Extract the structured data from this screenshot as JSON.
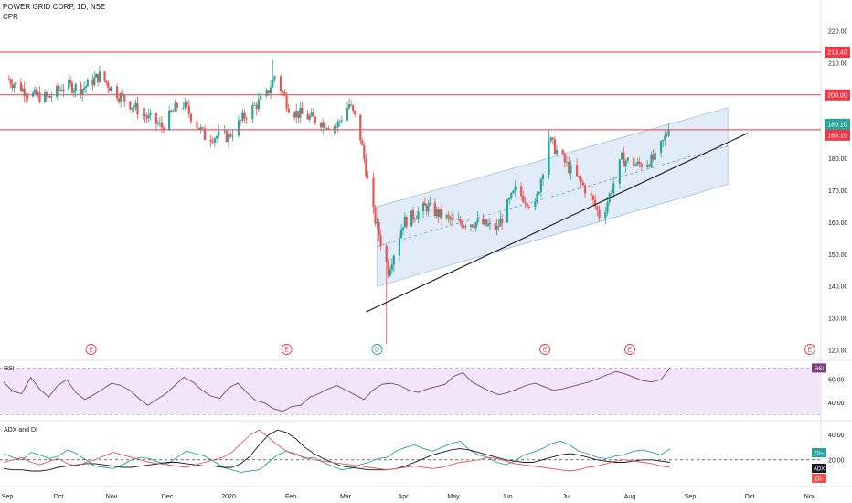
{
  "header": {
    "title": "POWER GRID CORP, 1D, NSE",
    "indicator": "CPR"
  },
  "colors": {
    "up": "#26a69a",
    "down": "#ef5350",
    "hline": "#f23645",
    "channel_fill": "#c9ddf2",
    "channel_edge": "#9cc3e6",
    "trend": "#131722",
    "rsi_line": "#7e3d7e",
    "rsi_band": "#f3e6fb",
    "adx": "#131722",
    "di_plus": "#26a69a",
    "di_minus": "#ef5350",
    "event_stroke": "#f23645",
    "event_stroke_d": "#2ba39c"
  },
  "chart_data": [
    {
      "type": "candlestick",
      "title": "POWER GRID CORP, 1D, NSE",
      "x": [
        "Sep",
        "Oct",
        "Nov",
        "Dec",
        "2020",
        "Feb",
        "Mar",
        "Apr",
        "May",
        "Jun",
        "Jul",
        "Aug",
        "Sep",
        "Oct",
        "Nov"
      ],
      "ylim": [
        118,
        224
      ],
      "yticks": [
        120,
        130,
        140,
        150,
        160,
        170,
        180,
        190,
        200,
        210,
        220
      ],
      "horizontal_lines": [
        {
          "value": 213.4,
          "label": "213.40"
        },
        {
          "value": 200.0,
          "label": "200.00"
        },
        {
          "value": 189.1,
          "label": "189.10"
        }
      ],
      "price_labels": [
        {
          "value": 189.1,
          "label": "189.10",
          "kind": "close"
        },
        {
          "value": 189.1,
          "label": "189.10",
          "kind": "line"
        }
      ],
      "anchors": [
        {
          "date": "2019-09-01",
          "price": 205
        },
        {
          "date": "2019-09-15",
          "price": 200
        },
        {
          "date": "2019-09-25",
          "price": 199
        },
        {
          "date": "2019-10-05",
          "price": 203
        },
        {
          "date": "2019-10-15",
          "price": 202
        },
        {
          "date": "2019-10-25",
          "price": 206
        },
        {
          "date": "2019-11-05",
          "price": 200
        },
        {
          "date": "2019-11-20",
          "price": 193
        },
        {
          "date": "2019-11-28",
          "price": 190
        },
        {
          "date": "2019-12-08",
          "price": 198
        },
        {
          "date": "2019-12-20",
          "price": 187
        },
        {
          "date": "2020-01-01",
          "price": 187
        },
        {
          "date": "2020-01-10",
          "price": 194
        },
        {
          "date": "2020-01-20",
          "price": 200
        },
        {
          "date": "2020-01-24",
          "price": 206
        },
        {
          "date": "2020-02-01",
          "price": 195
        },
        {
          "date": "2020-02-15",
          "price": 192
        },
        {
          "date": "2020-02-25",
          "price": 190
        },
        {
          "date": "2020-03-03",
          "price": 197
        },
        {
          "date": "2020-03-08",
          "price": 190
        },
        {
          "date": "2020-03-16",
          "price": 163
        },
        {
          "date": "2020-03-24",
          "price": 145
        },
        {
          "date": "2020-04-01",
          "price": 160
        },
        {
          "date": "2020-04-15",
          "price": 165
        },
        {
          "date": "2020-05-01",
          "price": 160
        },
        {
          "date": "2020-05-15",
          "price": 160
        },
        {
          "date": "2020-05-26",
          "price": 158
        },
        {
          "date": "2020-06-05",
          "price": 170
        },
        {
          "date": "2020-06-15",
          "price": 165
        },
        {
          "date": "2020-06-22",
          "price": 186
        },
        {
          "date": "2020-07-01",
          "price": 178
        },
        {
          "date": "2020-07-12",
          "price": 169
        },
        {
          "date": "2020-07-18",
          "price": 161
        },
        {
          "date": "2020-07-28",
          "price": 180
        },
        {
          "date": "2020-08-05",
          "price": 178
        },
        {
          "date": "2020-08-14",
          "price": 180
        },
        {
          "date": "2020-08-21",
          "price": 189.1
        }
      ],
      "spikes": [
        {
          "date": "2020-01-23",
          "high": 211
        },
        {
          "date": "2020-03-03",
          "high": 199
        },
        {
          "date": "2020-03-23",
          "low": 122
        },
        {
          "date": "2020-06-22",
          "high": 189
        }
      ],
      "channel": {
        "upper_start": {
          "date": "2020-03-18",
          "price": 165
        },
        "upper_end": {
          "date": "2020-09-20",
          "price": 196
        },
        "lower_start": {
          "date": "2020-03-18",
          "price": 140
        },
        "lower_end": {
          "date": "2020-09-20",
          "price": 172
        }
      },
      "trendline": {
        "start": {
          "date": "2020-03-12",
          "price": 132
        },
        "end": {
          "date": "2020-09-30",
          "price": 188
        }
      },
      "events": [
        {
          "date": "2019-10-20",
          "label": "E"
        },
        {
          "date": "2020-01-30",
          "label": "E"
        },
        {
          "date": "2020-03-18",
          "label": "D"
        },
        {
          "date": "2020-06-20",
          "label": "E"
        },
        {
          "date": "2020-08-01",
          "label": "E"
        },
        {
          "date": "2020-11-01",
          "label": "E"
        }
      ]
    },
    {
      "type": "line",
      "title": "RSI",
      "ylim": [
        28,
        75
      ],
      "yticks": [
        40,
        60
      ],
      "band": [
        30,
        70
      ],
      "last_label": "RSI",
      "series": [
        {
          "name": "RSI",
          "values": [
            58,
            50,
            48,
            62,
            52,
            45,
            55,
            60,
            49,
            43,
            47,
            52,
            57,
            55,
            51,
            44,
            38,
            43,
            48,
            55,
            62,
            58,
            51,
            46,
            44,
            53,
            57,
            49,
            42,
            40,
            35,
            33,
            37,
            38,
            45,
            48,
            52,
            55,
            51,
            47,
            43,
            51,
            56,
            57,
            55,
            51,
            49,
            52,
            54,
            56,
            63,
            66,
            58,
            54,
            50,
            47,
            49,
            52,
            55,
            57,
            54,
            51,
            52,
            54,
            56,
            58,
            61,
            64,
            67,
            65,
            62,
            59,
            58,
            60,
            70
          ]
        }
      ]
    },
    {
      "type": "line",
      "title": "ADX and DI",
      "ylim": [
        0,
        50
      ],
      "yticks": [
        20,
        40
      ],
      "reference_line": 20,
      "last_labels": [
        "DI+",
        "ADX",
        "DI-"
      ],
      "series": [
        {
          "name": "DI+",
          "values": [
            25,
            22,
            20,
            26,
            24,
            21,
            23,
            28,
            25,
            20,
            15,
            14,
            13,
            16,
            20,
            22,
            21,
            18,
            17,
            22,
            27,
            25,
            23,
            19,
            14,
            12,
            10,
            11,
            12,
            18,
            24,
            27,
            25,
            21,
            22,
            18,
            15,
            12,
            13,
            16,
            18,
            21,
            22,
            27,
            30,
            32,
            29,
            27,
            30,
            33,
            35,
            28,
            24,
            22,
            18,
            16,
            19,
            24,
            26,
            29,
            33,
            35,
            32,
            27,
            25,
            22,
            21,
            23,
            24,
            27,
            28,
            26,
            24,
            29
          ]
        },
        {
          "name": "ADX",
          "values": [
            13,
            12,
            12,
            11,
            11,
            12,
            14,
            15,
            16,
            17,
            17,
            16,
            15,
            14,
            14,
            15,
            16,
            17,
            18,
            18,
            17,
            16,
            15,
            15,
            14,
            14,
            17,
            23,
            32,
            40,
            44,
            42,
            37,
            30,
            25,
            21,
            18,
            15,
            14,
            13,
            12,
            12,
            12,
            13,
            15,
            18,
            21,
            24,
            26,
            28,
            29,
            28,
            26,
            24,
            22,
            20,
            19,
            18,
            18,
            20,
            22,
            24,
            25,
            24,
            22,
            20,
            19,
            18,
            18,
            19,
            20,
            20,
            19,
            18
          ]
        },
        {
          "name": "DI-",
          "values": [
            18,
            20,
            22,
            18,
            16,
            19,
            21,
            17,
            15,
            18,
            20,
            23,
            26,
            24,
            22,
            20,
            18,
            17,
            16,
            15,
            14,
            16,
            18,
            20,
            22,
            26,
            33,
            40,
            44,
            38,
            32,
            27,
            24,
            22,
            20,
            19,
            18,
            17,
            16,
            15,
            14,
            13,
            12,
            13,
            14,
            15,
            14,
            13,
            14,
            16,
            18,
            19,
            20,
            22,
            21,
            19,
            17,
            16,
            15,
            14,
            13,
            12,
            11,
            12,
            14,
            15,
            17,
            19,
            20,
            19,
            18,
            17,
            15,
            14
          ]
        }
      ]
    }
  ]
}
